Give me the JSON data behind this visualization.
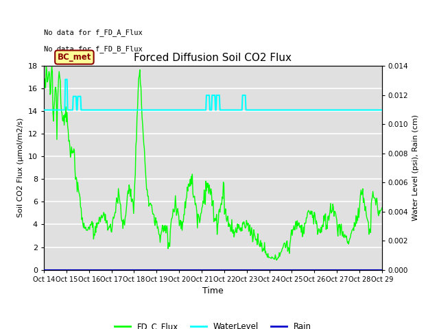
{
  "title": "Forced Diffusion Soil CO2 Flux",
  "xlabel": "Time",
  "ylabel_left": "Soil CO2 Flux (μmol/m2/s)",
  "ylabel_right": "Water Level (psi), Rain (cm)",
  "no_data_text_1": "No data for f_FD_A_Flux",
  "no_data_text_2": "No data for f_FD_B_Flux",
  "bc_met_label": "BC_met",
  "bc_met_color": "#8B0000",
  "bc_met_bg": "#FFFF99",
  "x_tick_labels": [
    "Oct 14",
    "Oct 15",
    "Oct 16",
    "Oct 17",
    "Oct 18",
    "Oct 19",
    "Oct 20",
    "Oct 21",
    "Oct 22",
    "Oct 23",
    "Oct 24",
    "Oct 25",
    "Oct 26",
    "Oct 27",
    "Oct 28",
    "Oct 29"
  ],
  "ylim_left": [
    0,
    18
  ],
  "ylim_right": [
    0,
    0.014
  ],
  "background_color": "#ffffff",
  "plot_bg_color": "#e0e0e0",
  "grid_color": "#ffffff",
  "fd_c_flux_color": "#00FF00",
  "water_level_color": "#00FFFF",
  "rain_color": "#0000CC",
  "water_level_base": 14.1,
  "water_level_spike_1_val": 16.8,
  "water_level_spike_2_val": 15.3,
  "subgrid_color": "#cccccc"
}
